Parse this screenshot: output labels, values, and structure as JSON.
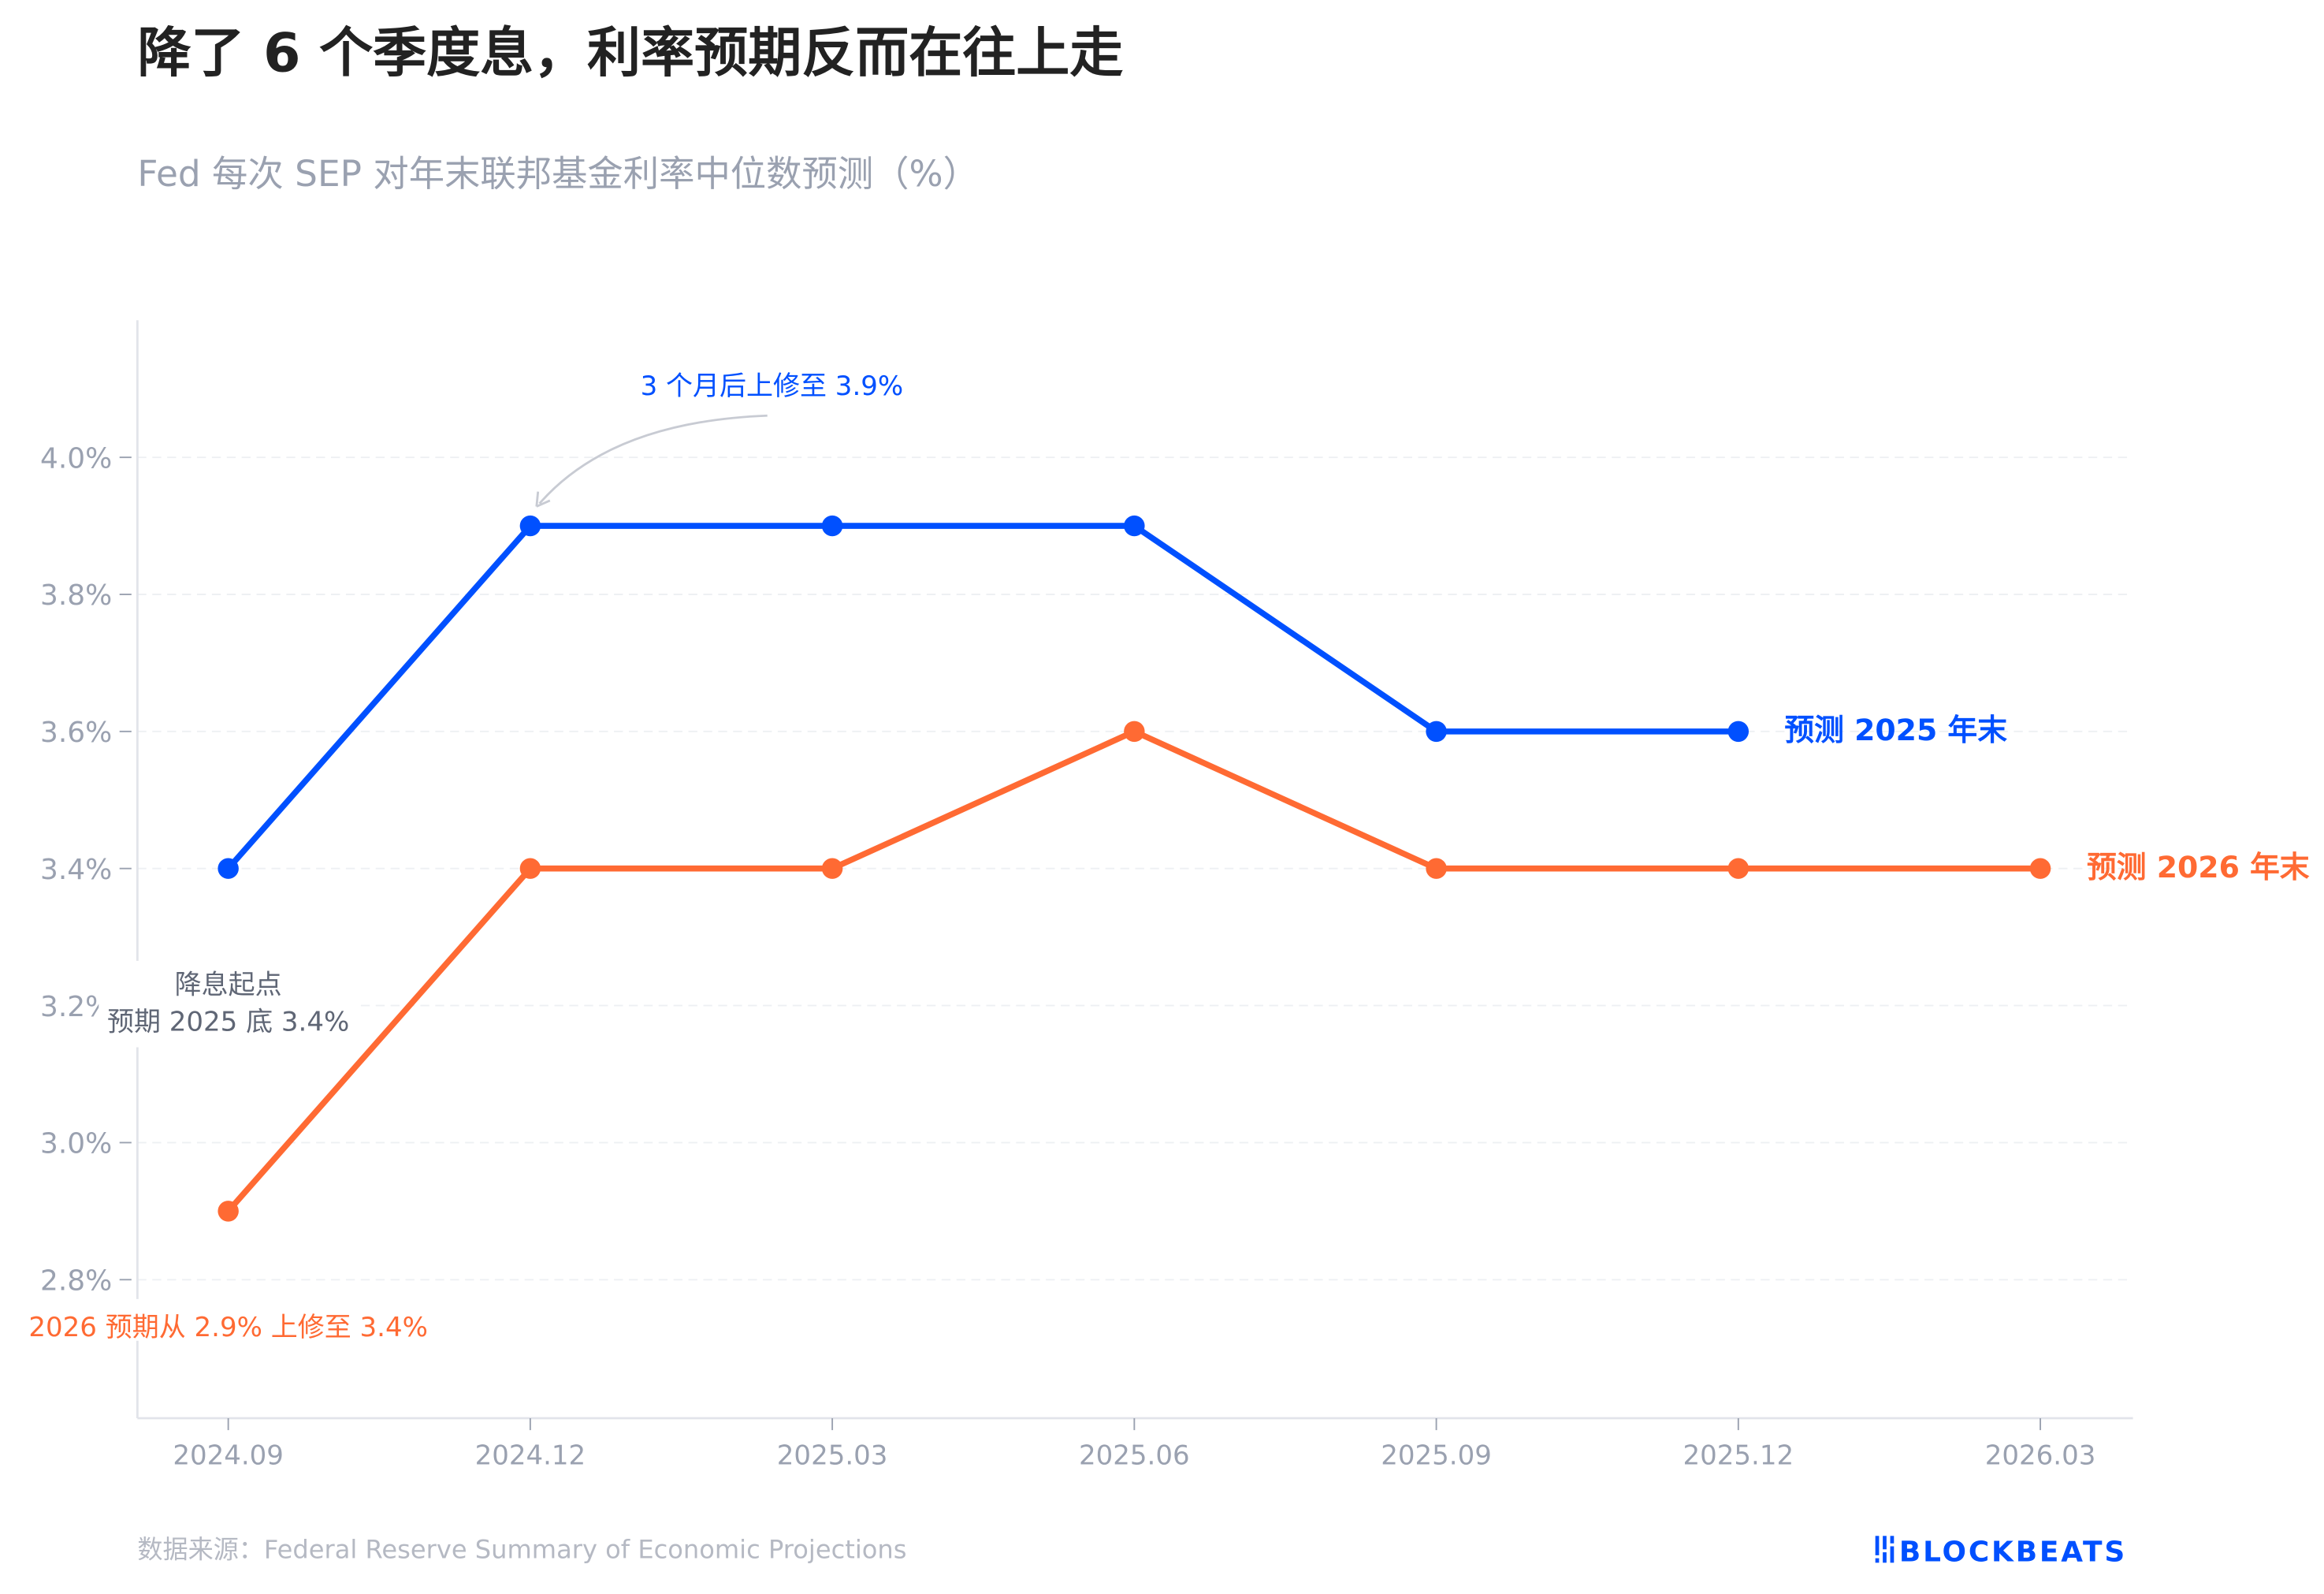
{
  "title": "降了 6 个季度息，利率预期反而在往上走",
  "subtitle": "Fed 每次 SEP 对年末联邦基金利率中位数预测（%）",
  "source": "数据来源：Federal Reserve Summary of Economic Projections",
  "logo_text": "BLOCKBEATS",
  "colors": {
    "blue": "#0050ff",
    "orange": "#ff6a33",
    "axis": "#9aa1b0"
  },
  "chart_data": {
    "type": "line",
    "x": [
      "2024.09",
      "2024.12",
      "2025.03",
      "2025.06",
      "2025.09",
      "2025.12",
      "2026.03"
    ],
    "yticks": [
      "2.8%",
      "3.0%",
      "3.2%",
      "3.4%",
      "3.6%",
      "3.8%",
      "4.0%"
    ],
    "ylim": [
      2.6,
      4.2
    ],
    "grid": true,
    "series": [
      {
        "name": "预测 2025 年末",
        "color": "#0050ff",
        "values": [
          3.4,
          3.9,
          3.9,
          3.9,
          3.6,
          3.6,
          null
        ]
      },
      {
        "name": "预测 2026 年末",
        "color": "#ff6a33",
        "values": [
          2.9,
          3.4,
          3.4,
          3.6,
          3.4,
          3.4,
          3.4
        ]
      }
    ],
    "annotations": {
      "revision": "3 个月后上修至 3.9%",
      "start_line1": "降息起点",
      "start_line2": "预期 2025 底 3.4%",
      "orange_note": "2026 预期从 2.9% 上修至 3.4%"
    }
  }
}
